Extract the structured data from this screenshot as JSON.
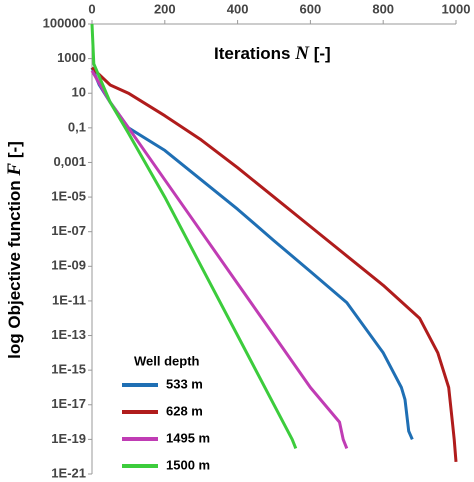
{
  "chart_data": {
    "type": "line",
    "x_label": {
      "text": "Iterations",
      "symbol": "N",
      "unit": "[-]"
    },
    "y_label": {
      "text": "log Objective function",
      "symbol": "F",
      "unit": "[-]"
    },
    "legend_title": "Well depth",
    "xlim": [
      0,
      1000
    ],
    "xticks": [
      0,
      200,
      400,
      600,
      800,
      1000
    ],
    "ylim": [
      1e-21,
      100000
    ],
    "log_y": true,
    "yticks": [
      100000,
      1000,
      10,
      {
        "value": 0.1,
        "label": "0,1"
      },
      {
        "value": 0.001,
        "label": "0,001"
      },
      {
        "value": 1e-05,
        "label": "1E-05"
      },
      {
        "value": 1e-07,
        "label": "1E-07"
      },
      {
        "value": 1e-09,
        "label": "1E-09"
      },
      {
        "value": 1e-11,
        "label": "1E-11"
      },
      {
        "value": 1e-13,
        "label": "1E-13"
      },
      {
        "value": 1e-15,
        "label": "1E-15"
      },
      {
        "value": 1e-17,
        "label": "1E-17"
      },
      {
        "value": 1e-19,
        "label": "1E-19"
      },
      {
        "value": 1e-21,
        "label": "1E-21"
      }
    ],
    "series": [
      {
        "name": "533 m",
        "color": "#1f6fb4",
        "x": [
          0,
          20,
          50,
          100,
          200,
          300,
          400,
          500,
          600,
          700,
          800,
          850,
          860,
          870,
          880
        ],
        "values": [
          300,
          30,
          3,
          0.1,
          0.005,
          0.0001,
          2e-06,
          3e-08,
          5e-10,
          8e-12,
          1e-14,
          1e-16,
          2e-17,
          3e-19,
          1e-19
        ]
      },
      {
        "name": "628 m",
        "color": "#b01c1c",
        "x": [
          0,
          50,
          100,
          200,
          300,
          400,
          500,
          600,
          700,
          800,
          900,
          950,
          980,
          990,
          995,
          1000
        ],
        "values": [
          300,
          30,
          10,
          0.5,
          0.02,
          0.0005,
          1e-05,
          2e-07,
          4e-09,
          8e-11,
          1e-12,
          1e-14,
          1e-16,
          1e-18,
          1e-19,
          5e-21
        ]
      },
      {
        "name": "1495 m",
        "color": "#c03cb4",
        "x": [
          0,
          50,
          100,
          200,
          300,
          400,
          500,
          600,
          680,
          690,
          700
        ],
        "values": [
          200,
          3,
          0.1,
          0.0001,
          1e-07,
          1e-10,
          1e-13,
          1e-16,
          1e-18,
          1e-19,
          3e-20
        ]
      },
      {
        "name": "1500 m",
        "color": "#3ccc3c",
        "x": [
          0,
          5,
          50,
          100,
          200,
          300,
          400,
          500,
          550,
          560
        ],
        "values": [
          100000,
          500,
          3,
          0.05,
          1e-05,
          1e-09,
          1e-13,
          1e-17,
          1e-19,
          3e-20
        ]
      }
    ]
  }
}
